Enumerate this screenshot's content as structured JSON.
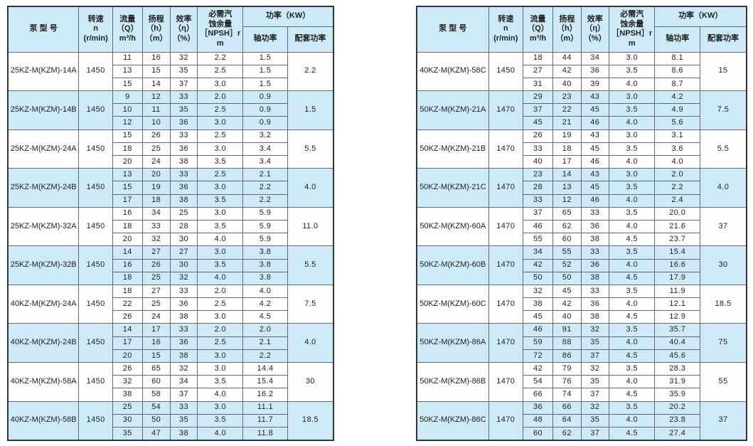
{
  "colors": {
    "header_bg": "#cdeaf6",
    "highlight_row_bg": "#cdeaf6",
    "row_bg": "#fdfdfd",
    "border": "#5f6b72",
    "outer_border": "#2f3438",
    "text": "#1f1f1f",
    "page_bg": "#ffffff"
  },
  "table_header": {
    "model": "泵  型  号",
    "speed": "转速\nn\n(r/min)",
    "flow": "流量\n（Q）\nm³/h",
    "head": "扬程\n（h）\n（m）",
    "efficiency": "效率\n（η）\n（%）",
    "npsh": "必需汽\n蚀余量\n［NPSH］r\nm",
    "power": "功率（KW）",
    "shaft": "轴功率",
    "matching": "配套功率"
  },
  "tables": [
    {
      "id": "left",
      "groups": [
        {
          "model": "25KZ-M(KZM)-14A",
          "speed": "1450",
          "highlight": false,
          "matching": "2.2",
          "rows": [
            [
              "11",
              "16",
              "32",
              "2.2",
              "1.5"
            ],
            [
              "13",
              "15",
              "35",
              "2.5",
              "1.5"
            ],
            [
              "15",
              "14",
              "37",
              "3.0",
              "1.5"
            ]
          ]
        },
        {
          "model": "25KZ-M(KZM)-14B",
          "speed": "1450",
          "highlight": true,
          "matching": "1.5",
          "rows": [
            [
              "9",
              "12",
              "33",
              "2.0",
              "0.9"
            ],
            [
              "10",
              "11",
              "35",
              "2.5",
              "0.9"
            ],
            [
              "12",
              "10",
              "36",
              "3.0",
              "0.9"
            ]
          ]
        },
        {
          "model": "25KZ-M(KZM)-24A",
          "speed": "1450",
          "highlight": false,
          "matching": "5.5",
          "rows": [
            [
              "15",
              "26",
              "33",
              "2.5",
              "3.2"
            ],
            [
              "18",
              "25",
              "36",
              "3.0",
              "3.4"
            ],
            [
              "20",
              "24",
              "38",
              "3.5",
              "3.4"
            ]
          ]
        },
        {
          "model": "25KZ-M(KZM)-24B",
          "speed": "1450",
          "highlight": true,
          "matching": "4.0",
          "rows": [
            [
              "13",
              "20",
              "33",
              "2.5",
              "2.1"
            ],
            [
              "15",
              "19",
              "36",
              "3.0",
              "2.2"
            ],
            [
              "17",
              "18",
              "38",
              "3.5",
              "2.2"
            ]
          ]
        },
        {
          "model": "25KZ-M(KZM)-32A",
          "speed": "1450",
          "highlight": false,
          "matching": "11.0",
          "rows": [
            [
              "16",
              "34",
              "25",
              "3.0",
              "5.9"
            ],
            [
              "18",
              "33",
              "28",
              "3.5",
              "5.9"
            ],
            [
              "20",
              "32",
              "30",
              "4.0",
              "5.9"
            ]
          ]
        },
        {
          "model": "25KZ-M(KZM)-32B",
          "speed": "1450",
          "highlight": true,
          "matching": "5.5",
          "rows": [
            [
              "14",
              "27",
              "27",
              "3.0",
              "3.8"
            ],
            [
              "16",
              "26",
              "30",
              "3.5",
              "3.8"
            ],
            [
              "18",
              "25",
              "32",
              "4.0",
              "3.8"
            ]
          ]
        },
        {
          "model": "40KZ-M(KZM)-24A",
          "speed": "1450",
          "highlight": false,
          "matching": "7.5",
          "rows": [
            [
              "18",
              "27",
              "33",
              "2.0",
              "4.0"
            ],
            [
              "22",
              "25",
              "36",
              "2.5",
              "4.2"
            ],
            [
              "26",
              "24",
              "38",
              "3.0",
              "4.5"
            ]
          ]
        },
        {
          "model": "40KZ-M(KZM)-24B",
          "speed": "1450",
          "highlight": true,
          "matching": "4.0",
          "rows": [
            [
              "14",
              "17",
              "33",
              "2.0",
              "2.0"
            ],
            [
              "17",
              "16",
              "36",
              "2.5",
              "2.1"
            ],
            [
              "20",
              "15",
              "38",
              "3.0",
              "2.2"
            ]
          ]
        },
        {
          "model": "40KZ-M(KZM)-58A",
          "speed": "1450",
          "highlight": false,
          "matching": "30",
          "rows": [
            [
              "26",
              "65",
              "32",
              "3.0",
              "14.4"
            ],
            [
              "32",
              "60",
              "34",
              "3.5",
              "15.4"
            ],
            [
              "38",
              "58",
              "37",
              "4.0",
              "16.2"
            ]
          ]
        },
        {
          "model": "40KZ-M(KZM)-58B",
          "speed": "1450",
          "highlight": true,
          "matching": "18.5",
          "rows": [
            [
              "25",
              "54",
              "33",
              "3.0",
              "11.1"
            ],
            [
              "30",
              "50",
              "35",
              "3.5",
              "11.7"
            ],
            [
              "35",
              "47",
              "38",
              "4.0",
              "11.8"
            ]
          ]
        }
      ]
    },
    {
      "id": "right",
      "groups": [
        {
          "model": "40KZ-M(KZM)-58C",
          "speed": "1450",
          "highlight": false,
          "matching": "15",
          "rows": [
            [
              "18",
              "44",
              "34",
              "3.0",
              "8.1"
            ],
            [
              "27",
              "42",
              "36",
              "3.5",
              "8.6"
            ],
            [
              "31",
              "40",
              "39",
              "4.0",
              "8.7"
            ]
          ]
        },
        {
          "model": "50KZ-M(KZM)-21A",
          "speed": "1470",
          "highlight": true,
          "matching": "7.5",
          "rows": [
            [
              "29",
              "23",
              "43",
              "3.0",
              "4.2"
            ],
            [
              "37",
              "22",
              "45",
              "3.5",
              "4.9"
            ],
            [
              "45",
              "21",
              "46",
              "4.0",
              "5.6"
            ]
          ]
        },
        {
          "model": "50KZ-M(KZM)-21B",
          "speed": "1470",
          "highlight": false,
          "matching": "5.5",
          "rows": [
            [
              "26",
              "19",
              "43",
              "3.0",
              "3.1"
            ],
            [
              "33",
              "18",
              "45",
              "3.5",
              "3.6"
            ],
            [
              "40",
              "17",
              "46",
              "4.0",
              "4.0"
            ]
          ]
        },
        {
          "model": "50KZ-M(KZM)-21C",
          "speed": "1470",
          "highlight": true,
          "matching": "4.0",
          "rows": [
            [
              "23",
              "14",
              "43",
              "3.0",
              "2.0"
            ],
            [
              "28",
              "13",
              "45",
              "3.5",
              "2.2"
            ],
            [
              "33",
              "12",
              "46",
              "4.0",
              "2.4"
            ]
          ]
        },
        {
          "model": "50KZ-M(KZM)-60A",
          "speed": "1470",
          "highlight": false,
          "matching": "37",
          "rows": [
            [
              "37",
              "65",
              "33",
              "3.5",
              "20.0"
            ],
            [
              "46",
              "62",
              "36",
              "4.0",
              "21.6"
            ],
            [
              "55",
              "60",
              "38",
              "4.5",
              "23.7"
            ]
          ]
        },
        {
          "model": "50KZ-M(KZM)-60B",
          "speed": "1470",
          "highlight": true,
          "matching": "30",
          "rows": [
            [
              "34",
              "55",
              "33",
              "3.5",
              "15.4"
            ],
            [
              "42",
              "52",
              "36",
              "4.0",
              "16.6"
            ],
            [
              "50",
              "50",
              "38",
              "4.5",
              "17.9"
            ]
          ]
        },
        {
          "model": "50KZ-M(KZM)-60C",
          "speed": "1470",
          "highlight": false,
          "matching": "18.5",
          "rows": [
            [
              "32",
              "45",
              "33",
              "3.5",
              "11.9"
            ],
            [
              "38",
              "42",
              "36",
              "4.0",
              "12.1"
            ],
            [
              "45",
              "40",
              "38",
              "4.5",
              "12.9"
            ]
          ]
        },
        {
          "model": "50KZ-M(KZM)-86A",
          "speed": "1470",
          "highlight": true,
          "matching": "75",
          "rows": [
            [
              "46",
              "91",
              "32",
              "3.5",
              "35.7"
            ],
            [
              "59",
              "88",
              "35",
              "4.0",
              "40.4"
            ],
            [
              "72",
              "86",
              "37",
              "4.5",
              "45.6"
            ]
          ]
        },
        {
          "model": "50KZ-M(KZM)-86B",
          "speed": "1470",
          "highlight": false,
          "matching": "55",
          "rows": [
            [
              "42",
              "79",
              "32",
              "3.5",
              "28.3"
            ],
            [
              "54",
              "76",
              "35",
              "4.0",
              "31.9"
            ],
            [
              "66",
              "74",
              "37",
              "4.5",
              "35.9"
            ]
          ]
        },
        {
          "model": "50KZ-M(KZM)-86C",
          "speed": "1470",
          "highlight": true,
          "matching": "37",
          "rows": [
            [
              "36",
              "66",
              "32",
              "3.5",
              "20.2"
            ],
            [
              "48",
              "64",
              "35",
              "4.0",
              "23.8"
            ],
            [
              "60",
              "62",
              "37",
              "4.5",
              "27.4"
            ]
          ]
        }
      ]
    }
  ]
}
